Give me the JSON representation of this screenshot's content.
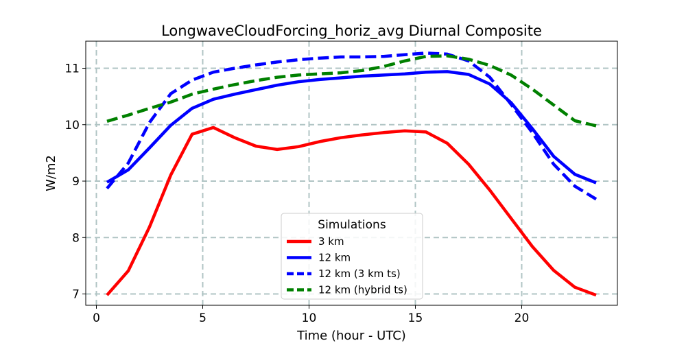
{
  "chart_data": {
    "type": "line",
    "title": "LongwaveCloudForcing_horiz_avg Diurnal Composite",
    "xlabel": "Time (hour - UTC)",
    "ylabel": "W/m2",
    "xlim": [
      -0.5,
      24.5
    ],
    "ylim": [
      6.8,
      11.48
    ],
    "xticks": [
      0,
      5,
      10,
      15,
      20
    ],
    "yticks": [
      7,
      8,
      9,
      10,
      11
    ],
    "grid": true,
    "legend": {
      "title": "Simulations",
      "placement": "lower-center"
    },
    "x": [
      0.5,
      1.5,
      2.5,
      3.5,
      4.5,
      5.5,
      6.5,
      7.5,
      8.5,
      9.5,
      10.5,
      11.5,
      12.5,
      13.5,
      14.5,
      15.5,
      16.5,
      17.5,
      18.5,
      19.5,
      20.5,
      21.5,
      22.5,
      23.5
    ],
    "series": [
      {
        "name": "3 km",
        "color": "#ff0000",
        "style": "solid",
        "values": [
          6.98,
          7.41,
          8.19,
          9.11,
          9.83,
          9.95,
          9.77,
          9.62,
          9.56,
          9.61,
          9.7,
          9.77,
          9.82,
          9.86,
          9.89,
          9.87,
          9.67,
          9.3,
          8.84,
          8.34,
          7.84,
          7.42,
          7.12,
          6.98
        ]
      },
      {
        "name": "12 km",
        "color": "#0000ff",
        "style": "solid",
        "values": [
          8.98,
          9.2,
          9.59,
          9.99,
          10.29,
          10.45,
          10.54,
          10.62,
          10.7,
          10.76,
          10.8,
          10.83,
          10.86,
          10.88,
          10.9,
          10.93,
          10.94,
          10.89,
          10.72,
          10.39,
          9.93,
          9.44,
          9.12,
          8.97
        ]
      },
      {
        "name": "12 km (3 km ts)",
        "color": "#0000ff",
        "style": "dashed",
        "values": [
          8.87,
          9.32,
          10.04,
          10.55,
          10.79,
          10.93,
          11.0,
          11.06,
          11.11,
          11.15,
          11.18,
          11.2,
          11.2,
          11.21,
          11.24,
          11.27,
          11.25,
          11.13,
          10.84,
          10.36,
          9.86,
          9.3,
          8.91,
          8.68
        ]
      },
      {
        "name": "12 km (hybrid ts)",
        "color": "#008000",
        "style": "dashed",
        "values": [
          10.06,
          10.17,
          10.29,
          10.4,
          10.54,
          10.63,
          10.71,
          10.78,
          10.84,
          10.88,
          10.9,
          10.92,
          10.96,
          11.03,
          11.13,
          11.21,
          11.22,
          11.16,
          11.05,
          10.88,
          10.63,
          10.35,
          10.07,
          9.98
        ]
      }
    ]
  }
}
